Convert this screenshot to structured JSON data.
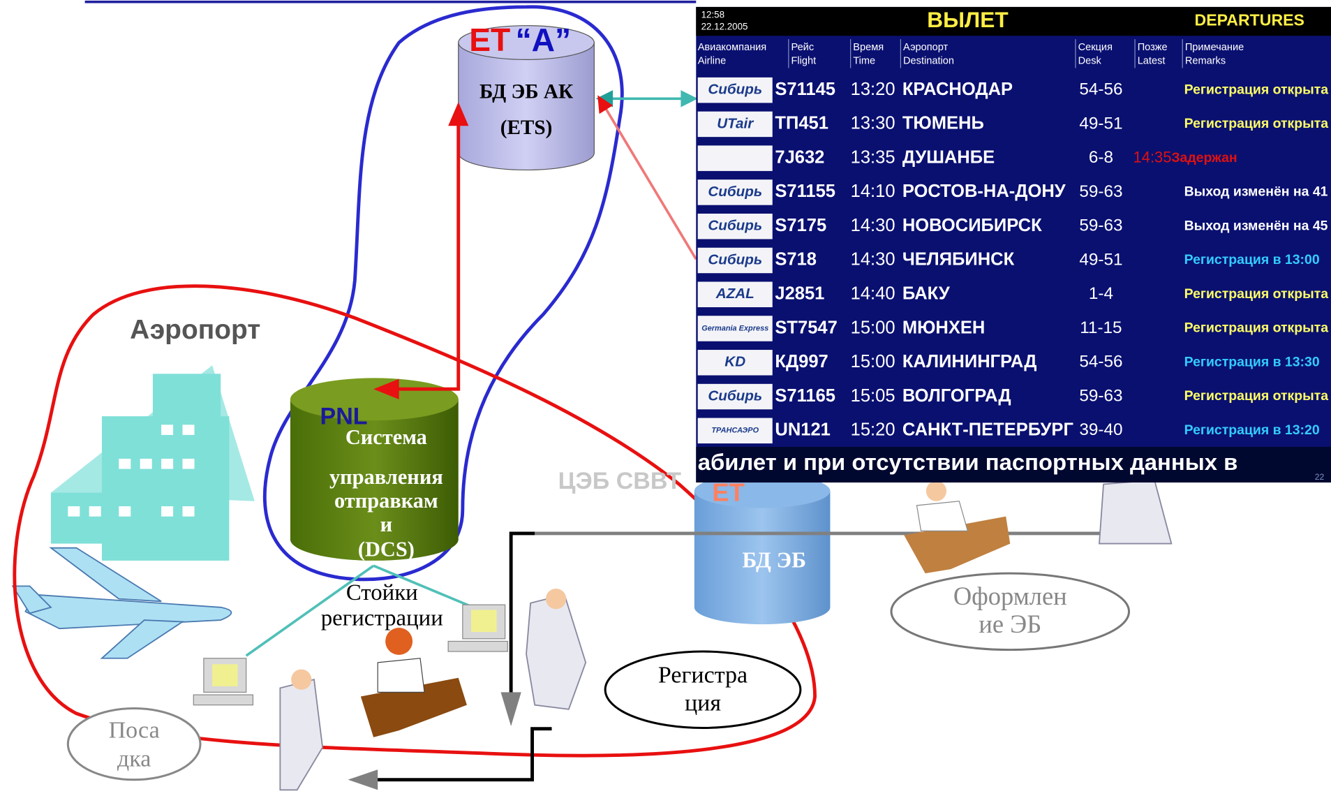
{
  "top_db": {
    "label_et": "ET",
    "label_a": "“A”",
    "lines": [
      "БД ЭБ АК",
      "(ETS)"
    ]
  },
  "airport_label": "Аэропорт",
  "dcs": {
    "pnl": "PNL",
    "lines": [
      "Система",
      "управления",
      "отправкам",
      "и",
      "(DCS)"
    ]
  },
  "center": {
    "label": "ЦЭБ СВВТ",
    "et": "ET",
    "db": "БД ЭБ"
  },
  "counters": [
    "Стойки",
    "регистрации"
  ],
  "registration": [
    "Регистра",
    "ция"
  ],
  "boarding": [
    "Поса",
    "дка"
  ],
  "issuing": [
    "Оформлен",
    "ие ЭБ"
  ],
  "board": {
    "time": "12:58",
    "date": "22.12.2005",
    "title": "ВЫЛЕТ",
    "title_en": "DEPARTURES",
    "columns": [
      {
        "ru": "Авиакомпания",
        "en": "Airline"
      },
      {
        "ru": "Рейс",
        "en": "Flight"
      },
      {
        "ru": "Время",
        "en": "Time"
      },
      {
        "ru": "Аэропорт",
        "en": "Destination"
      },
      {
        "ru": "Секция",
        "en": "Desk"
      },
      {
        "ru": "Позже",
        "en": "Latest"
      },
      {
        "ru": "Примечание",
        "en": "Remarks"
      }
    ],
    "rows": [
      {
        "airline": "Сибирь",
        "flight": "S71145",
        "time": "13:20",
        "destination": "КРАСНОДАР",
        "desk": "54-56",
        "remark": "Регистрация открыта",
        "remark_color": "#ffff66"
      },
      {
        "airline": "UTair",
        "flight": "ТП451",
        "time": "13:30",
        "destination": "ТЮМЕНЬ",
        "desk": "49-51",
        "remark": "Регистрация открыта",
        "remark_color": "#ffff66"
      },
      {
        "airline": null,
        "flight": "7J632",
        "time": "13:35",
        "destination": "ДУШАНБЕ",
        "desk": "6-8",
        "latest": "14:35",
        "remark": "Задержан",
        "remark_color": "#e01010"
      },
      {
        "airline": "Сибирь",
        "flight": "S71155",
        "time": "14:10",
        "destination": "РОСТОВ-НА-ДОНУ",
        "desk": "59-63",
        "remark": "Выход изменён на 41",
        "remark_color": "#ffffff"
      },
      {
        "airline": "Сибирь",
        "flight": "S7175",
        "time": "14:30",
        "destination": "НОВОСИБИРСК",
        "desk": "59-63",
        "remark": "Выход изменён на 45",
        "remark_color": "#ffffff"
      },
      {
        "airline": "Сибирь",
        "flight": "S718",
        "time": "14:30",
        "destination": "ЧЕЛЯБИНСК",
        "desk": "49-51",
        "remark": "Регистрация в 13:00",
        "remark_color": "#33ccff"
      },
      {
        "airline": "AZAL",
        "flight": "J2851",
        "time": "14:40",
        "destination": "БАКУ",
        "desk": "1-4",
        "remark": "Регистрация открыта",
        "remark_color": "#ffff66"
      },
      {
        "airline": "Germania Express",
        "flight": "ST7547",
        "time": "15:00",
        "destination": "МЮНХЕН",
        "desk": "11-15",
        "remark": "Регистрация открыта",
        "remark_color": "#ffff66"
      },
      {
        "airline": "KD",
        "flight": "КД997",
        "time": "15:00",
        "destination": "КАЛИНИНГРАД",
        "desk": "54-56",
        "remark": "Регистрация в 13:30",
        "remark_color": "#33ccff"
      },
      {
        "airline": "Сибирь",
        "flight": "S71165",
        "time": "15:05",
        "destination": "ВОЛГОГРАД",
        "desk": "59-63",
        "remark": "Регистрация открыта",
        "remark_color": "#ffff66"
      },
      {
        "airline": "ТРАНСАЭРО",
        "flight": "UN121",
        "time": "15:20",
        "destination": "САНКТ-ПЕТЕРБУРГ",
        "desk": "39-40",
        "remark": "Регистрация в 13:20",
        "remark_color": "#33ccff"
      }
    ],
    "ticker": "абилет и при отсутствии паспортных данных в",
    "page": "22"
  }
}
